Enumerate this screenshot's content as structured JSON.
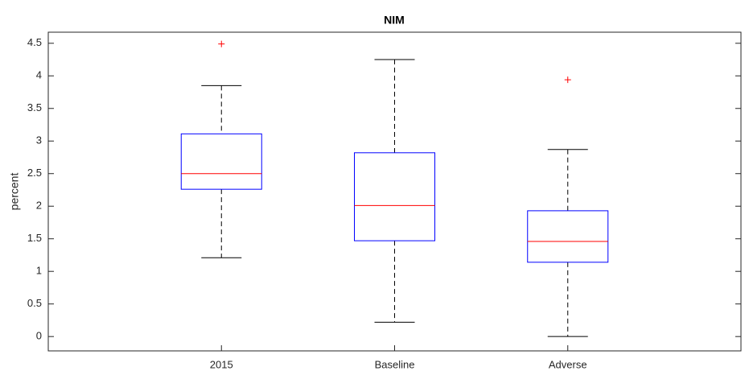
{
  "chart_data": {
    "type": "box",
    "title": "NIM",
    "ylabel": "percent",
    "categories": [
      "2015",
      "Baseline",
      "Adverse"
    ],
    "whisker_low": [
      1.21,
      0.22,
      0
    ],
    "q1": [
      2.26,
      1.47,
      1.14
    ],
    "median": [
      2.5,
      2.01,
      1.46
    ],
    "q3": [
      3.11,
      2.82,
      1.93
    ],
    "whisker_high": [
      3.85,
      4.25,
      2.87
    ],
    "outliers": [
      [
        4.49
      ],
      [],
      [
        3.94
      ]
    ],
    "box_color": "#0000ff",
    "median_color": "#ff0000",
    "whisker_color": "#000000",
    "outlier_color": "#ff0000",
    "ylim": [
      -0.22,
      4.67
    ],
    "yticks": [
      0,
      0.5,
      1,
      1.5,
      2,
      2.5,
      3,
      3.5,
      4,
      4.5
    ]
  }
}
